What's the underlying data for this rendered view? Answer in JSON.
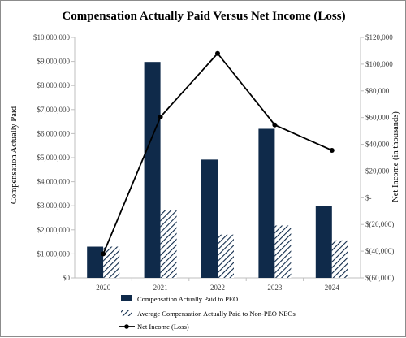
{
  "chart_data": {
    "type": "bar",
    "title": "Compensation Actually Paid Versus Net Income (Loss)",
    "categories": [
      "2020",
      "2021",
      "2022",
      "2023",
      "2024"
    ],
    "series": [
      {
        "name": "Compensation Actually Paid to PEO",
        "type": "bar",
        "axis": "left",
        "color": "#0f2a4a",
        "values": [
          1300000,
          8980000,
          4920000,
          6200000,
          3000000
        ]
      },
      {
        "name": "Average Compensation Actually Paid to Non-PEO NEOs",
        "type": "bar",
        "axis": "right-pattern",
        "color": "#0f2a4a",
        "pattern": "diagonal-hatch",
        "axis_ref": "left",
        "values": [
          1300000,
          2830000,
          1800000,
          2180000,
          1560000
        ]
      },
      {
        "name": "Net Income (Loss)",
        "type": "line",
        "axis": "right",
        "color": "#000000",
        "marker": "circle",
        "values": [
          -42000,
          60500,
          108000,
          54500,
          35500
        ]
      }
    ],
    "ylabel": "Compensation Actually Paid",
    "y2label": "Net Income (in thousands)",
    "ylim": [
      0,
      10000000
    ],
    "y2lim": [
      -60000,
      120000
    ],
    "yticks": [
      "$0",
      "$1,000,000",
      "$2,000,000",
      "$3,000,000",
      "$4,000,000",
      "$5,000,000",
      "$6,000,000",
      "$7,000,000",
      "$8,000,000",
      "$9,000,000",
      "$10,000,000"
    ],
    "y2ticks": [
      "$(60,000)",
      "$(40,000)",
      "$(20,000)",
      "$-",
      "$20,000",
      "$40,000",
      "$60,000",
      "$80,000",
      "$100,000",
      "$120,000"
    ],
    "legend_position": "bottom",
    "grid": false
  }
}
